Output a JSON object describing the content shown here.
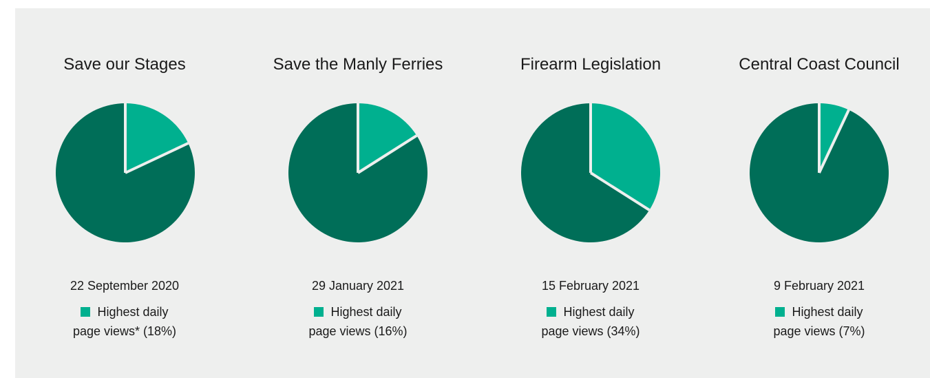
{
  "colors": {
    "highlight": "#00b08f",
    "rest": "#006e58",
    "background": "#eeefee",
    "stroke": "#eeefee"
  },
  "chart_data": [
    {
      "type": "pie",
      "title": "Save our Stages",
      "date": "22 September 2020",
      "legend_label": "Highest daily",
      "legend_detail": "page views* (18%)",
      "slices": [
        {
          "name": "Highest daily page views*",
          "value": 18
        },
        {
          "name": "rest",
          "value": 82
        }
      ]
    },
    {
      "type": "pie",
      "title": "Save the Manly Ferries",
      "date": "29 January 2021",
      "legend_label": "Highest daily",
      "legend_detail": "page views (16%)",
      "slices": [
        {
          "name": "Highest daily page views",
          "value": 16
        },
        {
          "name": "rest",
          "value": 84
        }
      ]
    },
    {
      "type": "pie",
      "title": "Firearm Legislation",
      "date": "15 February 2021",
      "legend_label": "Highest daily",
      "legend_detail": "page views (34%)",
      "slices": [
        {
          "name": "Highest daily page views",
          "value": 34
        },
        {
          "name": "rest",
          "value": 66
        }
      ]
    },
    {
      "type": "pie",
      "title": "Central Coast Council",
      "date": "9 February 2021",
      "legend_label": "Highest daily",
      "legend_detail": "page views (7%)",
      "slices": [
        {
          "name": "Highest daily page views",
          "value": 7
        },
        {
          "name": "rest",
          "value": 93
        }
      ]
    }
  ]
}
